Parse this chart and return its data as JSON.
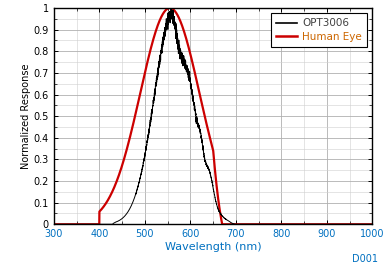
{
  "xlabel": "Wavelength (nm)",
  "ylabel": "Normalized Response",
  "xlim": [
    300,
    1000
  ],
  "ylim": [
    0,
    1.0
  ],
  "xticks": [
    300,
    400,
    500,
    600,
    700,
    800,
    900,
    1000
  ],
  "yticks": [
    0,
    0.1,
    0.2,
    0.3,
    0.4,
    0.5,
    0.6,
    0.7,
    0.8,
    0.9,
    1
  ],
  "opt3006_color": "#000000",
  "human_eye_color": "#cc0000",
  "legend_labels": [
    "OPT3006",
    "Human Eye"
  ],
  "xlabel_color": "#0070c0",
  "ylabel_color": "#000000",
  "tick_label_color": "#000000",
  "annotation": "D001",
  "annotation_color": "#0070c0",
  "bg_color": "#ffffff",
  "grid_color": "#b0b0b0",
  "grid_color_minor": "#d0d0d0"
}
